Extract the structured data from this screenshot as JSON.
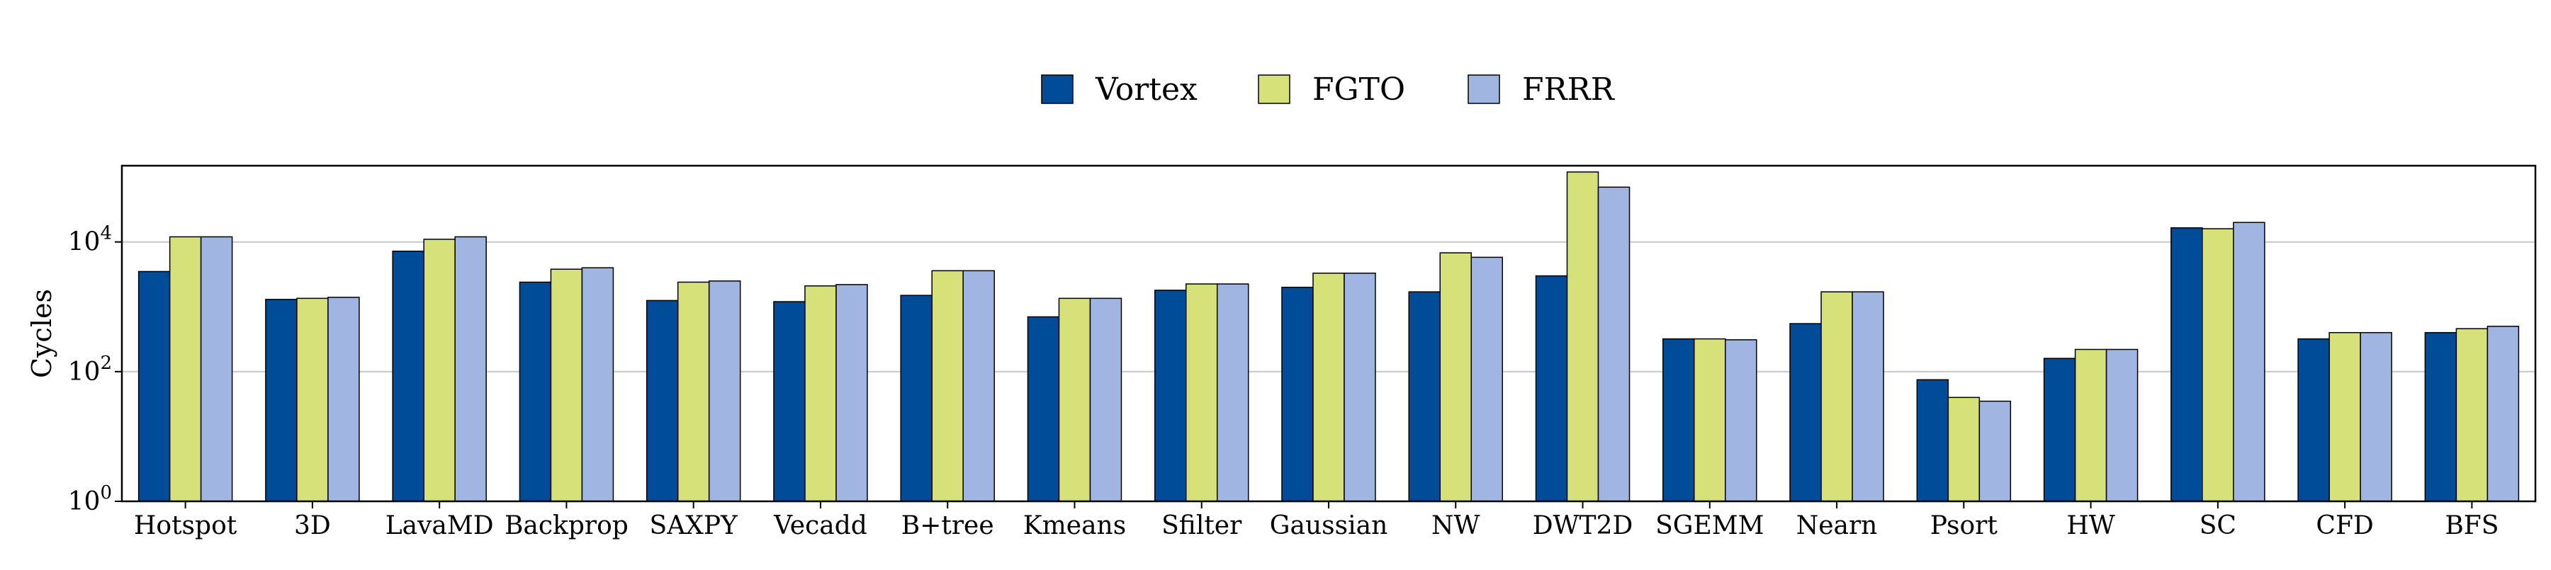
{
  "chart_data": {
    "type": "bar",
    "ylabel": "Cycles",
    "yscale": "log",
    "ylim": [
      1,
      150000
    ],
    "yticks": [
      {
        "value": 1,
        "base": "10",
        "exp": "0"
      },
      {
        "value": 100,
        "base": "10",
        "exp": "2"
      },
      {
        "value": 10000,
        "base": "10",
        "exp": "4"
      }
    ],
    "grid": "horizontal",
    "legend_position": "top-center",
    "categories": [
      "Hotspot",
      "3D",
      "LavaMD",
      "Backprop",
      "SAXPY",
      "Vecadd",
      "B+tree",
      "Kmeans",
      "Sfilter",
      "Gaussian",
      "NW",
      "DWT2D",
      "SGEMM",
      "Nearn",
      "Psort",
      "HW",
      "SC",
      "CFD",
      "BFS"
    ],
    "series": [
      {
        "name": "Vortex",
        "color": "#004c99",
        "values": [
          3500,
          1300,
          7200,
          2400,
          1250,
          1200,
          1500,
          700,
          1800,
          2000,
          1700,
          3000,
          320,
          550,
          75,
          160,
          16500,
          320,
          400
        ]
      },
      {
        "name": "FGTO",
        "color": "#d6e17a",
        "values": [
          12000,
          1350,
          11000,
          3800,
          2400,
          2100,
          3600,
          1350,
          2250,
          3300,
          6800,
          120000,
          320,
          1700,
          40,
          220,
          16000,
          400,
          460
        ]
      },
      {
        "name": "FRRR",
        "color": "#a0b5e1",
        "values": [
          12000,
          1400,
          12000,
          4000,
          2500,
          2200,
          3600,
          1350,
          2250,
          3300,
          5800,
          70000,
          310,
          1700,
          35,
          220,
          20000,
          400,
          500
        ]
      }
    ]
  }
}
